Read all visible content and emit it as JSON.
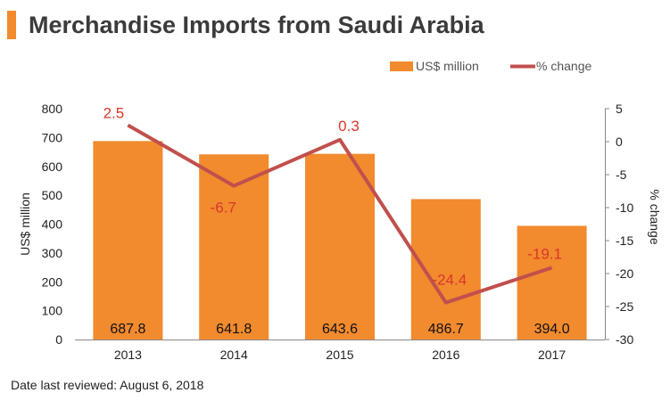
{
  "header": {
    "title": "Merchandise Imports from Saudi Arabia"
  },
  "footer": {
    "note": "Date last reviewed: August 6, 2018"
  },
  "colors": {
    "bar": "#f28a2e",
    "line": "#c0504d",
    "title_accent": "#f28a2e",
    "line_label": "#d9372a"
  },
  "chart_data": {
    "type": "bar",
    "categories": [
      "2013",
      "2014",
      "2015",
      "2016",
      "2017"
    ],
    "series": [
      {
        "name": "US$ million",
        "type": "bar",
        "axis": "left",
        "values": [
          687.8,
          641.8,
          643.6,
          486.7,
          394.0
        ],
        "labels": [
          "687.8",
          "641.8",
          "643.6",
          "486.7",
          "394.0"
        ]
      },
      {
        "name": "% change",
        "type": "line",
        "axis": "right",
        "values": [
          2.5,
          -6.7,
          0.3,
          -24.4,
          -19.1
        ],
        "labels": [
          "2.5",
          "-6.7",
          "0.3",
          "-24.4",
          "-19.1"
        ]
      }
    ],
    "ylabel": "US$ million",
    "y2label": "% change",
    "ylim": [
      0,
      800
    ],
    "y2lim": [
      -30,
      5
    ],
    "yticks": [
      "0",
      "100",
      "200",
      "300",
      "400",
      "500",
      "600",
      "700",
      "800"
    ],
    "y2ticks": [
      "5",
      "0",
      "-5",
      "-10",
      "-15",
      "-20",
      "-25",
      "-30"
    ],
    "legend": "top-right",
    "grid": false
  }
}
